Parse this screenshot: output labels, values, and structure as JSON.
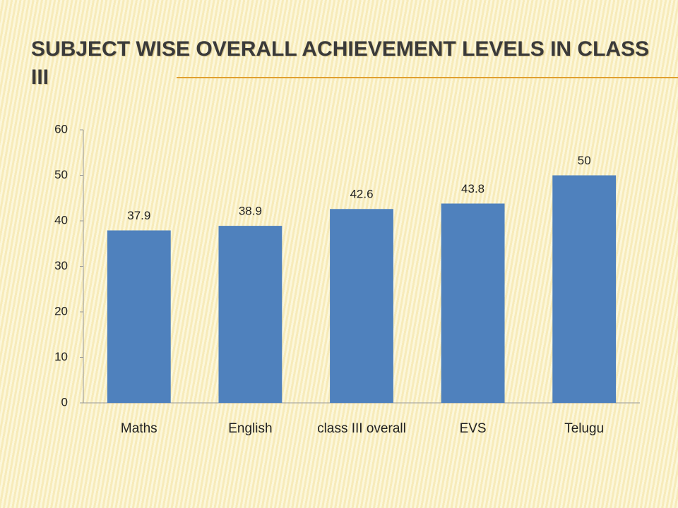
{
  "chart_data": {
    "type": "bar",
    "title": "SUBJECT WISE OVERALL ACHIEVEMENT LEVELS IN CLASS III",
    "categories": [
      "Maths",
      "English",
      "class III overall",
      "EVS",
      "Telugu"
    ],
    "values": [
      37.9,
      38.9,
      42.6,
      43.8,
      50
    ],
    "color": "#4f81bd",
    "ylim": [
      0,
      60
    ],
    "yticks": [
      0,
      10,
      20,
      30,
      40,
      50,
      60
    ],
    "grid": false
  }
}
